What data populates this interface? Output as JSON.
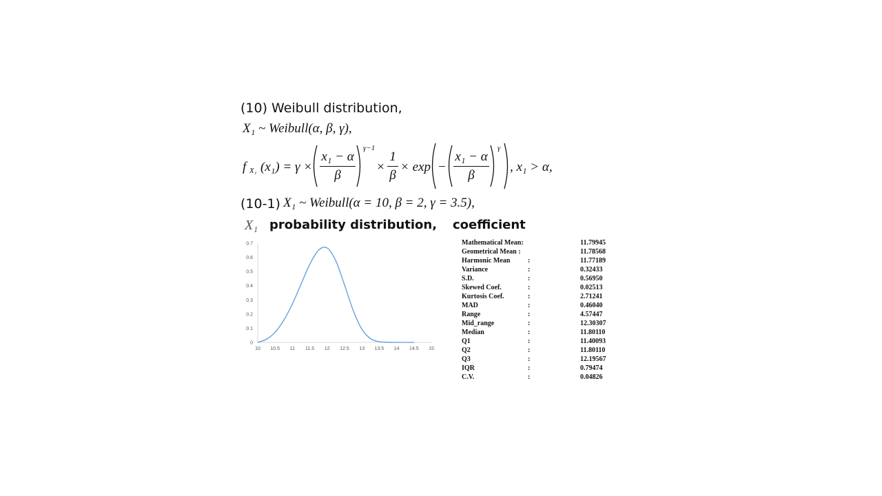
{
  "section": {
    "title": "(10) Weibull distribution,",
    "notation": "X₁ ~ Weibull(α, β, γ),",
    "pdf": {
      "lhs": "f",
      "lhs_sub": "X₁",
      "lhs_arg": "(x₁) = γ ×",
      "frac1_num": "x₁ − α",
      "frac1_den": "β",
      "power1": "γ−1",
      "times": "×",
      "frac2_num": "1",
      "frac2_den": "β",
      "exp": "× exp",
      "minus": "−",
      "frac3_num": "x₁ − α",
      "frac3_den": "β",
      "power3": "γ",
      "condition": ", x₁ > α,"
    }
  },
  "subsection": {
    "label": "(10-1)",
    "notation": "X₁ ~ Weibull(α = 10, β = 2, γ = 3.5),"
  },
  "captions": {
    "variable": "X₁",
    "distribution": "probability distribution,",
    "coefficient": "coefficient"
  },
  "chart_data": {
    "type": "line",
    "title": "",
    "xlabel": "",
    "ylabel": "",
    "xlim": [
      10,
      15
    ],
    "ylim": [
      0,
      0.7
    ],
    "x_ticks": [
      "10",
      "10.5",
      "11",
      "11.5",
      "12",
      "12.5",
      "13",
      "13.5",
      "14",
      "14.5",
      "15"
    ],
    "y_ticks": [
      "0",
      "0.1",
      "0.2",
      "0.3",
      "0.4",
      "0.5",
      "0.6",
      "0.7"
    ],
    "series": [
      {
        "x": [
          10,
          10.25,
          10.5,
          10.75,
          11,
          11.25,
          11.5,
          11.75,
          12,
          12.25,
          12.5,
          12.75,
          13,
          13.25,
          13.5,
          13.75,
          14,
          14.25,
          14.5
        ],
        "values": [
          0,
          0.022,
          0.071,
          0.156,
          0.272,
          0.412,
          0.551,
          0.65,
          0.666,
          0.575,
          0.405,
          0.225,
          0.093,
          0.026,
          0.005,
          0.001,
          0,
          0,
          0
        ]
      }
    ],
    "color": "#5b9bd5",
    "grid": false
  },
  "stats": [
    {
      "label": "Mathematical Mean:",
      "sep": "",
      "value": "11.79945"
    },
    {
      "label": "Geometrical Mean :",
      "sep": "",
      "value": "11.78568"
    },
    {
      "label": "Harmonic Mean",
      "sep": ":",
      "value": "11.77189"
    },
    {
      "label": "Variance",
      "sep": ":",
      "value": "0.32433"
    },
    {
      "label": "S.D.",
      "sep": ":",
      "value": "0.56950"
    },
    {
      "label": "Skewed Coef.",
      "sep": ":",
      "value": "0.02513"
    },
    {
      "label": "Kurtosis Coef.",
      "sep": ":",
      "value": "2.71241"
    },
    {
      "label": "MAD",
      "sep": ":",
      "value": "0.46040"
    },
    {
      "label": "Range",
      "sep": ":",
      "value": "4.57447"
    },
    {
      "label": "Mid_range",
      "sep": ":",
      "value": "12.30307"
    },
    {
      "label": "Median",
      "sep": ":",
      "value": "11.80110"
    },
    {
      "label": "Q1",
      "sep": ":",
      "value": "11.40093"
    },
    {
      "label": "Q2",
      "sep": ":",
      "value": "11.80110"
    },
    {
      "label": "Q3",
      "sep": ":",
      "value": "12.19567"
    },
    {
      "label": "IQR",
      "sep": ":",
      "value": "0.79474"
    },
    {
      "label": "C.V.",
      "sep": ":",
      "value": "0.04826"
    }
  ]
}
